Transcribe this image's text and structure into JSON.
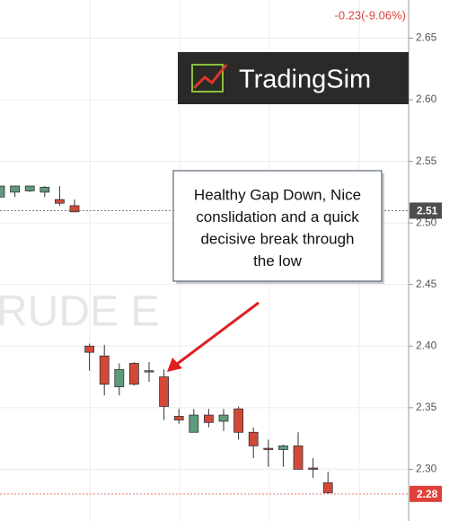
{
  "chart_data": {
    "type": "candlestick",
    "title": "-0.23(-9.06%)",
    "watermark": "RUDE E",
    "logo": "TradingSim",
    "annotation": [
      "Healthy Gap Down, Nice",
      "conslidation and a quick",
      "decisive break through",
      "the low"
    ],
    "categories": [
      null,
      null,
      null,
      null,
      null,
      null,
      null,
      null,
      null,
      null,
      null,
      null,
      null,
      null,
      null,
      null,
      null,
      null,
      null,
      null,
      null,
      null,
      null
    ],
    "open": [
      2.521,
      2.525,
      2.526,
      2.525,
      2.519,
      2.514,
      2.4,
      2.392,
      2.367,
      2.386,
      2.379,
      2.375,
      2.343,
      2.33,
      2.344,
      2.339,
      2.349,
      2.33,
      2.317,
      2.316,
      2.319,
      2.301,
      2.289
    ],
    "high": [
      2.53,
      2.53,
      2.53,
      2.53,
      2.53,
      2.519,
      2.402,
      2.401,
      2.386,
      2.387,
      2.387,
      2.381,
      2.349,
      2.349,
      2.349,
      2.349,
      2.351,
      2.334,
      2.324,
      2.32,
      2.33,
      2.309,
      2.298
    ],
    "low": [
      2.521,
      2.521,
      2.525,
      2.521,
      2.514,
      2.509,
      2.38,
      2.36,
      2.36,
      2.368,
      2.371,
      2.34,
      2.337,
      2.33,
      2.334,
      2.331,
      2.324,
      2.309,
      2.302,
      2.302,
      2.3,
      2.293,
      2.28
    ],
    "close": [
      2.53,
      2.53,
      2.53,
      2.529,
      2.516,
      2.509,
      2.395,
      2.369,
      2.381,
      2.369,
      2.38,
      2.351,
      2.34,
      2.344,
      2.338,
      2.344,
      2.33,
      2.319,
      2.316,
      2.319,
      2.3,
      2.3,
      2.281
    ],
    "up_color": "#5e9a7c",
    "down_color": "#d2493a",
    "ylim": [
      2.258,
      2.681
    ],
    "yticks": [
      {
        "value": 2.3,
        "label": "2.30"
      },
      2.35,
      {
        "value": 2.4,
        "label": "2.40"
      },
      2.45,
      {
        "value": 2.5,
        "label": "2.50"
      },
      2.55,
      {
        "value": 2.6,
        "label": "2.60"
      },
      2.65
    ],
    "grid": true,
    "price_markers": [
      {
        "value": 2.51,
        "color": "#4d4d4d"
      },
      {
        "value": 2.28,
        "color": "#e0403a"
      }
    ]
  }
}
